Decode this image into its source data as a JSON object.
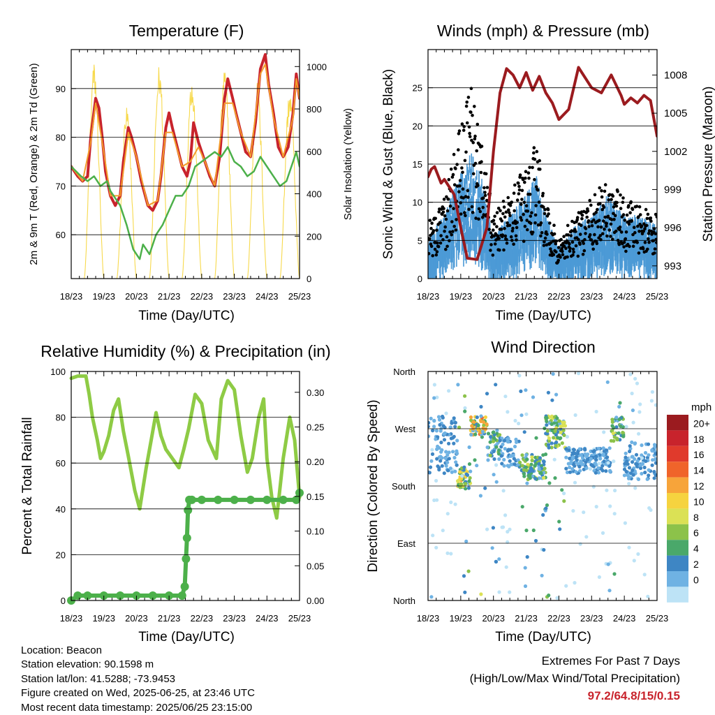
{
  "footer": {
    "location": "Location: Beacon",
    "elevation": "Station elevation: 90.1598 m",
    "latlon": "Station lat/lon: 41.5288; -73.9453",
    "created": "Figure created on Wed, 2025-06-25, at 23:46 UTC",
    "recent": "Most recent data timestamp: 2025/06/25 23:15:00",
    "extremes_title": "Extremes For Past 7 Days",
    "extremes_sub": "(High/Low/Max Wind/Total Precipitation)",
    "extremes_values": "97.2/64.8/15/0.15"
  },
  "colors": {
    "temp2m": "#c8232c",
    "temp9m": "#f39c2c",
    "dew": "#4cb04a",
    "solar": "#f7d94c",
    "gust": "#000000",
    "wind": "#4c9ad6",
    "pressure": "#9b1b1f",
    "rh": "#8ecb45",
    "precip": "#4cb04a"
  },
  "chart_data": [
    {
      "type": "line",
      "title": "Temperature (F)",
      "xlabel": "Time (Day/UTC)",
      "ylabel": "2m & 9m T (Red, Orange) & 2m Td (Green)",
      "ylabel_right": "Solar Insolation (Yellow)",
      "x_ticks": [
        "18/23",
        "19/23",
        "20/23",
        "21/23",
        "22/23",
        "23/23",
        "24/23",
        "25/23"
      ],
      "y_ticks": [
        "60",
        "70",
        "80",
        "90"
      ],
      "y_ticks_right": [
        "0",
        "200",
        "400",
        "600",
        "800",
        "1000"
      ],
      "ylim": [
        51,
        98
      ],
      "ylim_right": [
        0,
        1080
      ],
      "xlim": [
        0,
        7
      ],
      "series": [
        {
          "name": "2m T",
          "color": "#c8232c",
          "axis": "left",
          "width": 4,
          "x": [
            0,
            0.2,
            0.35,
            0.5,
            0.6,
            0.75,
            0.85,
            0.95,
            1.05,
            1.2,
            1.35,
            1.5,
            1.6,
            1.75,
            1.85,
            2.0,
            2.15,
            2.35,
            2.5,
            2.65,
            2.75,
            2.9,
            3.0,
            3.1,
            3.25,
            3.4,
            3.55,
            3.65,
            3.75,
            3.9,
            4.0,
            4.1,
            4.25,
            4.4,
            4.55,
            4.7,
            4.8,
            4.95,
            5.05,
            5.2,
            5.35,
            5.5,
            5.65,
            5.8,
            5.95,
            6.05,
            6.2,
            6.35,
            6.5,
            6.65,
            6.8,
            6.9,
            7.0
          ],
          "y": [
            74,
            72,
            71,
            72,
            80,
            88,
            86,
            80,
            73,
            68,
            66,
            68,
            75,
            82,
            80,
            76,
            71,
            66,
            65,
            67,
            72,
            82,
            85,
            82,
            78,
            74,
            72,
            75,
            83,
            79,
            77,
            75,
            72,
            70,
            76,
            88,
            92,
            88,
            85,
            81,
            77,
            76,
            83,
            94,
            97,
            91,
            85,
            78,
            76,
            78,
            85,
            93,
            88
          ]
        },
        {
          "name": "9m T",
          "color": "#f39c2c",
          "axis": "left",
          "width": 2,
          "x": [
            0,
            0.35,
            0.6,
            0.75,
            0.95,
            1.2,
            1.5,
            1.75,
            2.0,
            2.35,
            2.65,
            2.9,
            3.1,
            3.4,
            3.65,
            3.9,
            4.1,
            4.4,
            4.7,
            4.95,
            5.2,
            5.5,
            5.8,
            5.95,
            6.2,
            6.5,
            6.8,
            6.9,
            7.0
          ],
          "y": [
            74,
            71,
            79,
            87,
            79,
            68,
            68,
            81,
            76,
            66,
            67,
            81,
            81,
            74,
            75,
            78,
            75,
            70,
            87,
            87,
            81,
            76,
            93,
            95,
            84,
            76,
            84,
            92,
            88
          ]
        },
        {
          "name": "2m Td",
          "color": "#4cb04a",
          "axis": "left",
          "width": 2.5,
          "x": [
            0,
            0.3,
            0.5,
            0.7,
            0.9,
            1.1,
            1.2,
            1.4,
            1.5,
            1.7,
            1.9,
            2.0,
            2.1,
            2.2,
            2.4,
            2.6,
            2.8,
            3.0,
            3.2,
            3.4,
            3.6,
            3.8,
            4.0,
            4.2,
            4.4,
            4.6,
            4.8,
            5.0,
            5.2,
            5.4,
            5.6,
            5.8,
            6.0,
            6.2,
            6.4,
            6.6,
            6.8,
            6.9,
            7.0
          ],
          "y": [
            74,
            72,
            71,
            72,
            70,
            71,
            69,
            67,
            66,
            62,
            57,
            56,
            55,
            58,
            56,
            60,
            62,
            65,
            68,
            68,
            70,
            74,
            75,
            76,
            77,
            76,
            78,
            75,
            74,
            72,
            73,
            76,
            74,
            72,
            70,
            71,
            75,
            77,
            74
          ]
        }
      ],
      "solar": {
        "color": "#f7d94c",
        "axis": "right",
        "days": 7,
        "peaks": [
          890,
          1020,
          820,
          1010,
          960,
          1000,
          930,
          900
        ],
        "peak_offset": 0.7
      }
    },
    {
      "type": "scatter",
      "title": "Winds (mph) & Pressure (mb)",
      "xlabel": "Time (Day/UTC)",
      "ylabel": "Sonic Wind & Gust (Blue, Black)",
      "ylabel_right": "Station Pressure (Maroon)",
      "x_ticks": [
        "18/23",
        "19/23",
        "20/23",
        "21/23",
        "22/23",
        "23/23",
        "24/23",
        "25/23"
      ],
      "y_ticks": [
        "0",
        "5",
        "10",
        "15",
        "20",
        "25"
      ],
      "y_ticks_right": [
        "993",
        "996",
        "999",
        "1002",
        "1005",
        "1008"
      ],
      "ylim": [
        0,
        30
      ],
      "ylim_right": [
        992,
        1010
      ],
      "xlim": [
        0,
        7
      ],
      "wind_envelope": {
        "x": [
          0,
          0.5,
          1,
          1.3,
          1.6,
          2,
          2.5,
          3,
          3.3,
          3.6,
          4,
          4.5,
          5,
          5.5,
          6,
          6.5,
          7
        ],
        "y": [
          4,
          6,
          10,
          12,
          10,
          4,
          6,
          8,
          10,
          6,
          3,
          5,
          6,
          8,
          6,
          6,
          5
        ]
      },
      "gust_envelope": {
        "x": [
          0,
          0.5,
          1,
          1.3,
          1.6,
          2,
          2.5,
          3,
          3.3,
          3.6,
          4,
          4.5,
          5,
          5.5,
          6,
          6.5,
          7
        ],
        "y": [
          7,
          10,
          20,
          25,
          18,
          8,
          11,
          14,
          18,
          10,
          5,
          8,
          10,
          13,
          10,
          9,
          8
        ]
      },
      "pressure": {
        "name": "Station Pressure",
        "color": "#9b1b1f",
        "x": [
          0,
          0.1,
          0.2,
          0.4,
          0.5,
          0.7,
          0.8,
          1.0,
          1.2,
          1.5,
          1.8,
          2.0,
          2.2,
          2.4,
          2.6,
          2.8,
          3.0,
          3.2,
          3.4,
          3.6,
          3.8,
          4.0,
          4.3,
          4.6,
          5.0,
          5.3,
          5.6,
          5.9,
          6.0,
          6.2,
          6.4,
          6.6,
          6.8,
          7.0
        ],
        "y": [
          1000,
          1000.6,
          1000.8,
          999.5,
          999.8,
          999,
          998.6,
          996,
          993.6,
          993.5,
          996,
          1002,
          1006.6,
          1008.5,
          1008.0,
          1007.0,
          1008.2,
          1006.8,
          1007.9,
          1006.6,
          1005.8,
          1004.5,
          1005.3,
          1008.6,
          1007,
          1006.6,
          1008.0,
          1006.4,
          1005.7,
          1006.2,
          1005.8,
          1006.4,
          1006.0,
          1003.2
        ]
      }
    },
    {
      "type": "line",
      "title": "Relative Humidity (%) & Precipitation (in)",
      "xlabel": "Time (Day/UTC)",
      "ylabel": "Percent & Total Rainfall",
      "x_ticks": [
        "18/23",
        "19/23",
        "20/23",
        "21/23",
        "22/23",
        "23/23",
        "24/23",
        "25/23"
      ],
      "y_ticks": [
        "0",
        "20",
        "40",
        "60",
        "80",
        "100"
      ],
      "y_ticks_right": [
        "0.00",
        "0.05",
        "0.10",
        "0.15",
        "0.20",
        "0.25",
        "0.30"
      ],
      "ylim": [
        0,
        100
      ],
      "ylim_right": [
        0,
        0.33
      ],
      "xlim": [
        0,
        7
      ],
      "series": [
        {
          "name": "RH",
          "color": "#8ecb45",
          "axis": "left",
          "width": 5,
          "x": [
            0,
            0.2,
            0.45,
            0.55,
            0.65,
            0.8,
            0.9,
            1.0,
            1.15,
            1.3,
            1.45,
            1.6,
            1.75,
            1.95,
            2.1,
            2.3,
            2.45,
            2.6,
            2.75,
            2.9,
            3.1,
            3.3,
            3.45,
            3.6,
            3.8,
            4.0,
            4.2,
            4.45,
            4.6,
            4.8,
            5.0,
            5.2,
            5.4,
            5.55,
            5.75,
            5.9,
            6.0,
            6.15,
            6.3,
            6.5,
            6.7,
            6.85,
            7.0
          ],
          "y": [
            97,
            98,
            98,
            90,
            80,
            70,
            62,
            65,
            72,
            83,
            88,
            74,
            63,
            48,
            40,
            58,
            70,
            82,
            72,
            66,
            62,
            58,
            66,
            75,
            90,
            86,
            70,
            62,
            88,
            96,
            92,
            72,
            56,
            62,
            80,
            88,
            62,
            45,
            36,
            62,
            80,
            70,
            45
          ]
        },
        {
          "name": "Precipitation",
          "color": "#4cb04a",
          "axis": "right",
          "width": 6,
          "markers": true,
          "x": [
            0,
            0.2,
            0.5,
            1.0,
            1.5,
            2.0,
            2.5,
            3.0,
            3.4,
            3.48,
            3.52,
            3.55,
            3.58,
            3.62,
            3.7,
            4.0,
            4.5,
            5.0,
            5.5,
            6.0,
            6.5,
            6.9,
            7.0
          ],
          "y": [
            0,
            0.007,
            0.007,
            0.007,
            0.007,
            0.007,
            0.007,
            0.007,
            0.007,
            0.02,
            0.06,
            0.09,
            0.13,
            0.145,
            0.145,
            0.145,
            0.145,
            0.145,
            0.145,
            0.145,
            0.145,
            0.145,
            0.155
          ]
        }
      ]
    },
    {
      "type": "scatter",
      "title": "Wind Direction",
      "xlabel": "Time (Day/UTC)",
      "ylabel": "Direction (Colored By Speed)",
      "x_ticks": [
        "18/23",
        "19/23",
        "20/23",
        "21/23",
        "22/23",
        "23/23",
        "24/23",
        "25/23"
      ],
      "y_ticks": [
        "North",
        "East",
        "South",
        "West",
        "North"
      ],
      "y_tick_values": [
        0,
        90,
        180,
        270,
        360
      ],
      "ylim": [
        0,
        360
      ],
      "xlim": [
        0,
        7
      ],
      "legend_title": "mph",
      "legend_labels": [
        "20+",
        "18",
        "16",
        "14",
        "12",
        "10",
        "8",
        "6",
        "4",
        "2",
        "0"
      ],
      "legend_colors": [
        "#9b1b1f",
        "#c8232c",
        "#e03a2c",
        "#f0642a",
        "#f7a43a",
        "#f6d33f",
        "#dbe155",
        "#8cc24a",
        "#4aa86a",
        "#3e86c4",
        "#6fb2e3",
        "#bde3f6"
      ],
      "direction_clusters": [
        {
          "x": [
            0.2,
            0.9
          ],
          "y": [
            200,
            290
          ],
          "speed": 4
        },
        {
          "x": [
            0.9,
            1.3
          ],
          "y": [
            175,
            215
          ],
          "speed": 11
        },
        {
          "x": [
            1.2,
            1.8
          ],
          "y": [
            260,
            290
          ],
          "speed": 13
        },
        {
          "x": [
            1.8,
            2.2
          ],
          "y": [
            220,
            270
          ],
          "speed": 7
        },
        {
          "x": [
            2.2,
            2.8
          ],
          "y": [
            210,
            260
          ],
          "speed": 4
        },
        {
          "x": [
            2.8,
            3.6
          ],
          "y": [
            190,
            230
          ],
          "speed": 8
        },
        {
          "x": [
            3.6,
            4.2
          ],
          "y": [
            240,
            290
          ],
          "speed": 9
        },
        {
          "x": [
            4.2,
            5.6
          ],
          "y": [
            200,
            240
          ],
          "speed": 4
        },
        {
          "x": [
            5.6,
            6.0
          ],
          "y": [
            250,
            290
          ],
          "speed": 8
        },
        {
          "x": [
            6.0,
            7.0
          ],
          "y": [
            190,
            250
          ],
          "speed": 4
        }
      ]
    }
  ]
}
